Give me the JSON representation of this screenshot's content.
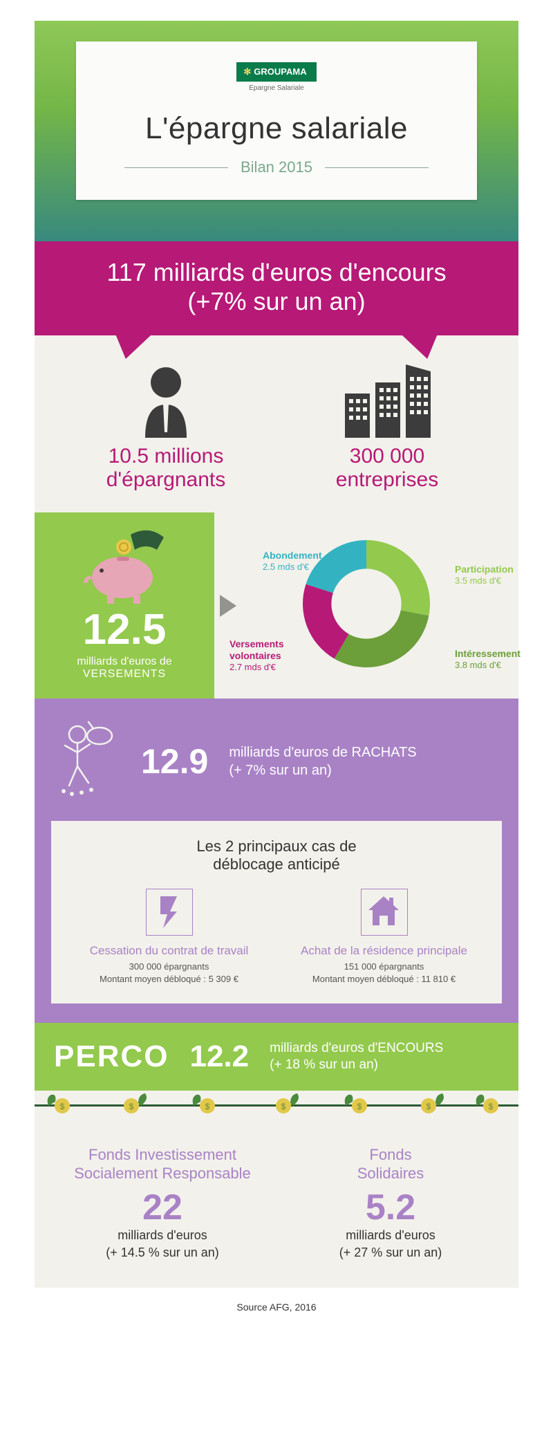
{
  "colors": {
    "magenta": "#b71977",
    "green": "#93c94d",
    "purple": "#a982c6",
    "beige": "#f2f1eb",
    "teal": "#33b3c2",
    "dark": "#333333"
  },
  "header": {
    "logo_brand": "GROUPAMA",
    "logo_sub": "Epargne Salariale",
    "title": "L'épargne salariale",
    "subtitle": "Bilan 2015"
  },
  "headline": {
    "line1": "117 milliards d'euros d'encours",
    "line2": "(+7% sur un an)"
  },
  "savers": {
    "value": "10.5 millions",
    "label": "d'épargnants"
  },
  "companies": {
    "value": "300 000",
    "label": "entreprises"
  },
  "versements": {
    "amount": "12.5",
    "unit": "milliards d'euros de",
    "word": "VERSEMENTS"
  },
  "donut": {
    "type": "donut",
    "inner_radius": 0.55,
    "slices": [
      {
        "label": "Participation",
        "sub": "3.5 mds d'€",
        "value": 3.5,
        "color": "#93c94d"
      },
      {
        "label": "Intéressement",
        "sub": "3.8 mds d'€",
        "value": 3.8,
        "color": "#6c9e3a"
      },
      {
        "label": "Versements volontaires",
        "sub": "2.7 mds d'€",
        "value": 2.7,
        "color": "#b71977"
      },
      {
        "label": "Abondement",
        "sub": "2.5 mds d'€",
        "value": 2.5,
        "color": "#33b3c2"
      }
    ],
    "label_colors": [
      "#93c94d",
      "#6c9e3a",
      "#b71977",
      "#33b3c2"
    ],
    "label_fontsize": 13
  },
  "rachats": {
    "amount": "12.9",
    "text_top": "milliards d'euros de RACHATS",
    "text_sub": "(+ 7% sur un an)"
  },
  "deblocage": {
    "title_l1": "Les 2 principaux cas de",
    "title_l2": "déblocage anticipé",
    "col1": {
      "title": "Cessation du contrat de travail",
      "line1": "300 000 épargnants",
      "line2": "Montant moyen débloqué : 5 309 €"
    },
    "col2": {
      "title": "Achat de la résidence principale",
      "line1": "151 000 épargnants",
      "line2": "Montant moyen débloqué : 11 810 €"
    }
  },
  "perco": {
    "word": "PERCO",
    "amount": "12.2",
    "text_top": "milliards d'euros d'ENCOURS",
    "text_sub": "(+ 18 % sur un an)"
  },
  "funds": {
    "col1": {
      "title_l1": "Fonds Investissement",
      "title_l2": "Socialement Responsable",
      "amount": "22",
      "unit": "milliards d'euros",
      "delta": "(+ 14.5 % sur un an)"
    },
    "col2": {
      "title_l1": "Fonds",
      "title_l2": "Solidaires",
      "amount": "5.2",
      "unit": "milliards d'euros",
      "delta": "(+ 27 % sur un an)"
    }
  },
  "source": "Source AFG, 2016"
}
